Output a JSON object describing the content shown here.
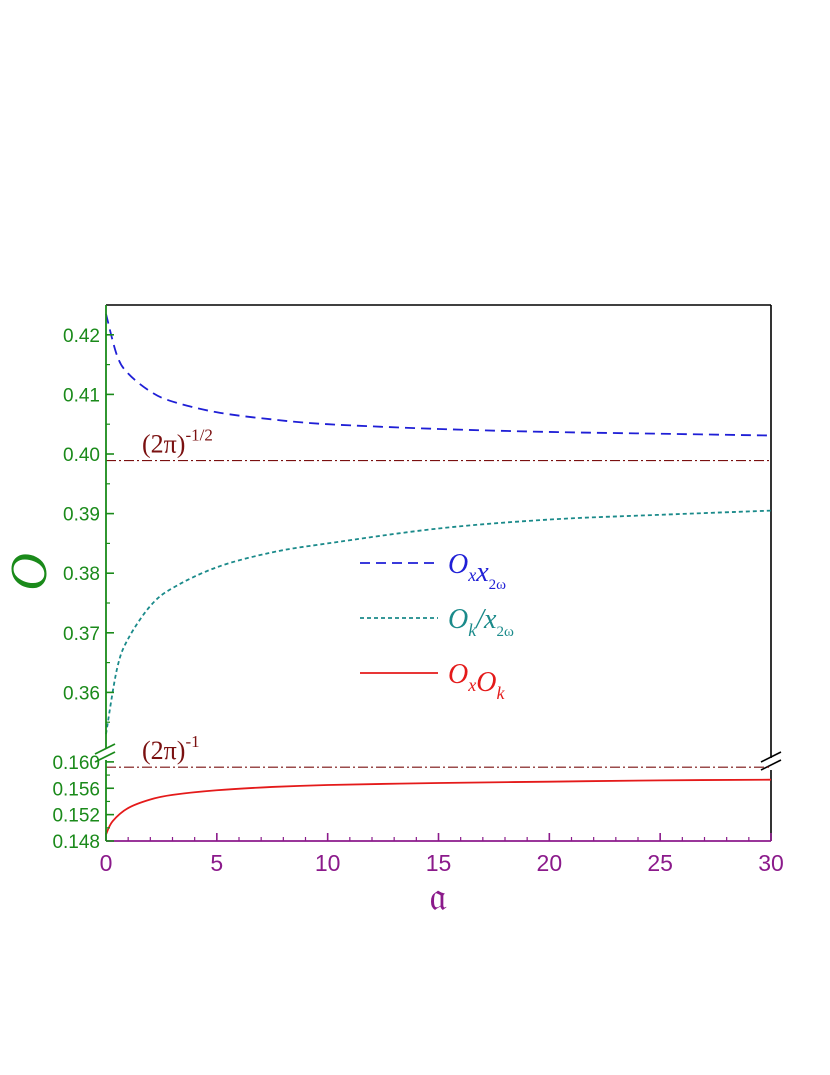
{
  "chart_data": {
    "type": "line",
    "title": "",
    "xlabel": "𝔞",
    "ylabel": "O",
    "xlim": [
      0,
      30
    ],
    "ylim_upper": [
      0.35,
      0.425
    ],
    "ylim_lower": [
      0.148,
      0.1615
    ],
    "broken_y_axis": true,
    "x_ticks": [
      0,
      5,
      10,
      15,
      20,
      25,
      30
    ],
    "x_tick_labels": [
      "0",
      "5",
      "10",
      "15",
      "20",
      "25",
      "30"
    ],
    "y_ticks_upper": [
      0.36,
      0.37,
      0.38,
      0.39,
      0.4,
      0.41,
      0.42
    ],
    "y_tick_labels_upper": [
      "0.36",
      "0.37",
      "0.38",
      "0.39",
      "0.40",
      "0.41",
      "0.42"
    ],
    "y_ticks_lower": [
      0.148,
      0.152,
      0.156,
      0.16
    ],
    "y_tick_labels_lower": [
      "0.148",
      "0.152",
      "0.156",
      "0.160"
    ],
    "series": [
      {
        "name": "O_x x_2ω",
        "panel": "upper",
        "style": "dashed",
        "color": "#1f1fd6",
        "x": [
          0,
          0.5,
          1,
          2,
          3,
          5,
          7.5,
          10,
          15,
          20,
          25,
          30
        ],
        "y": [
          0.4235,
          0.4165,
          0.4135,
          0.4105,
          0.4088,
          0.407,
          0.4058,
          0.405,
          0.4042,
          0.4037,
          0.4034,
          0.4031
        ]
      },
      {
        "name": "O_k / x_2ω",
        "panel": "upper",
        "style": "dotted",
        "color": "#1a8a8a",
        "x": [
          0,
          0.5,
          1,
          2,
          3,
          5,
          7.5,
          10,
          15,
          20,
          25,
          30
        ],
        "y": [
          0.353,
          0.364,
          0.369,
          0.3745,
          0.3775,
          0.381,
          0.3835,
          0.385,
          0.3875,
          0.389,
          0.3898,
          0.3905
        ]
      },
      {
        "name": "O_x O_k",
        "panel": "lower",
        "style": "solid",
        "color": "#e41a1a",
        "x": [
          0,
          0.3,
          1,
          2,
          3,
          5,
          7.5,
          10,
          15,
          20,
          25,
          30
        ],
        "y": [
          0.149,
          0.151,
          0.153,
          0.1543,
          0.155,
          0.1557,
          0.1562,
          0.1565,
          0.1568,
          0.157,
          0.1572,
          0.1573
        ]
      }
    ],
    "reference_lines": [
      {
        "label_base": "(2π)",
        "label_sup": "-1/2",
        "value": 0.3989,
        "panel": "upper"
      },
      {
        "label_base": "(2π)",
        "label_sup": "-1",
        "value": 0.1592,
        "panel": "lower"
      }
    ],
    "legend": {
      "position": "center-right",
      "entries": [
        {
          "main": "O",
          "sub1": "x",
          "main2": "x",
          "sub2": "2ω",
          "sep": ""
        },
        {
          "main": "O",
          "sub1": "k",
          "main2": "x",
          "sub2": "2ω",
          "sep": "/"
        },
        {
          "main": "O",
          "sub1": "x",
          "main2": "O",
          "sub2": "k",
          "sep": ""
        }
      ]
    },
    "colors": {
      "x_axis": "#8b1a8b",
      "y_axis": "#1a8a1a",
      "reference": "#7a1010",
      "frame": "#000000"
    }
  }
}
